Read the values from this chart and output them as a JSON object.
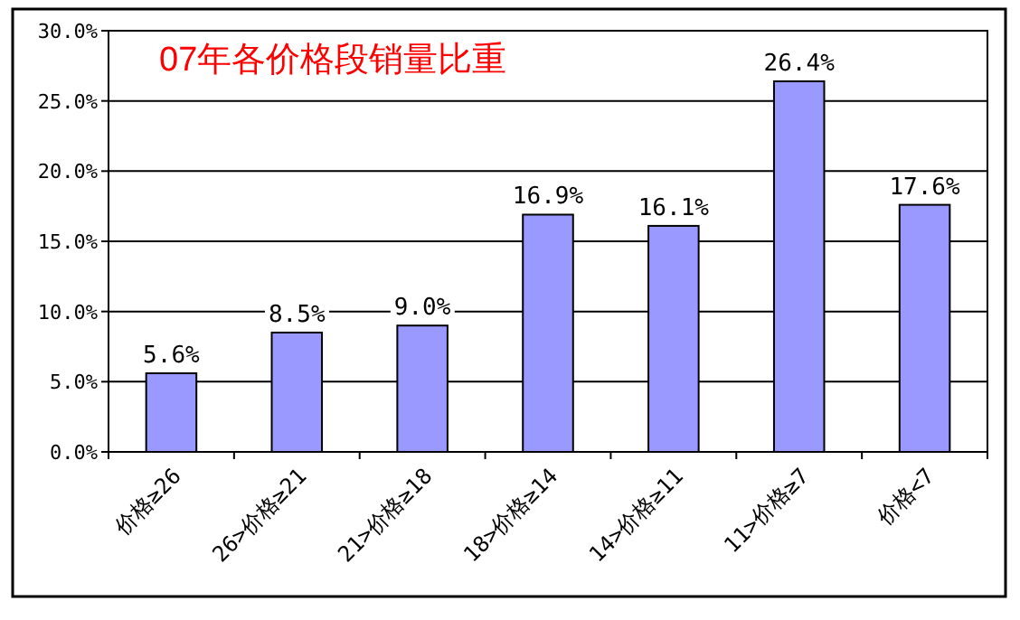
{
  "chart_data": {
    "type": "bar",
    "title": "07年各价格段销量比重",
    "categories": [
      "价格≥26",
      "26>价格≥21",
      "21>价格≥18",
      "18>价格≥14",
      "14>价格≥11",
      "11>价格≥7",
      "价格<7"
    ],
    "series": [
      {
        "color": "#9999ff",
        "values": [
          5.6,
          8.5,
          9.0,
          16.9,
          16.1,
          26.4,
          17.6
        ],
        "value_labels": [
          "5.6%",
          "8.5%",
          "9.0%",
          "16.9%",
          "16.1%",
          "26.4%",
          "17.6%"
        ]
      }
    ],
    "ylim": [
      0,
      30
    ],
    "yticks": [
      {
        "value": 0,
        "label": "0.0%"
      },
      {
        "value": 5,
        "label": "5.0%"
      },
      {
        "value": 10,
        "label": "10.0%"
      },
      {
        "value": 15,
        "label": "15.0%"
      },
      {
        "value": 20,
        "label": "20.0%"
      },
      {
        "value": 25,
        "label": "25.0%"
      },
      {
        "value": 30,
        "label": "30.0%"
      }
    ],
    "grid": "y"
  }
}
